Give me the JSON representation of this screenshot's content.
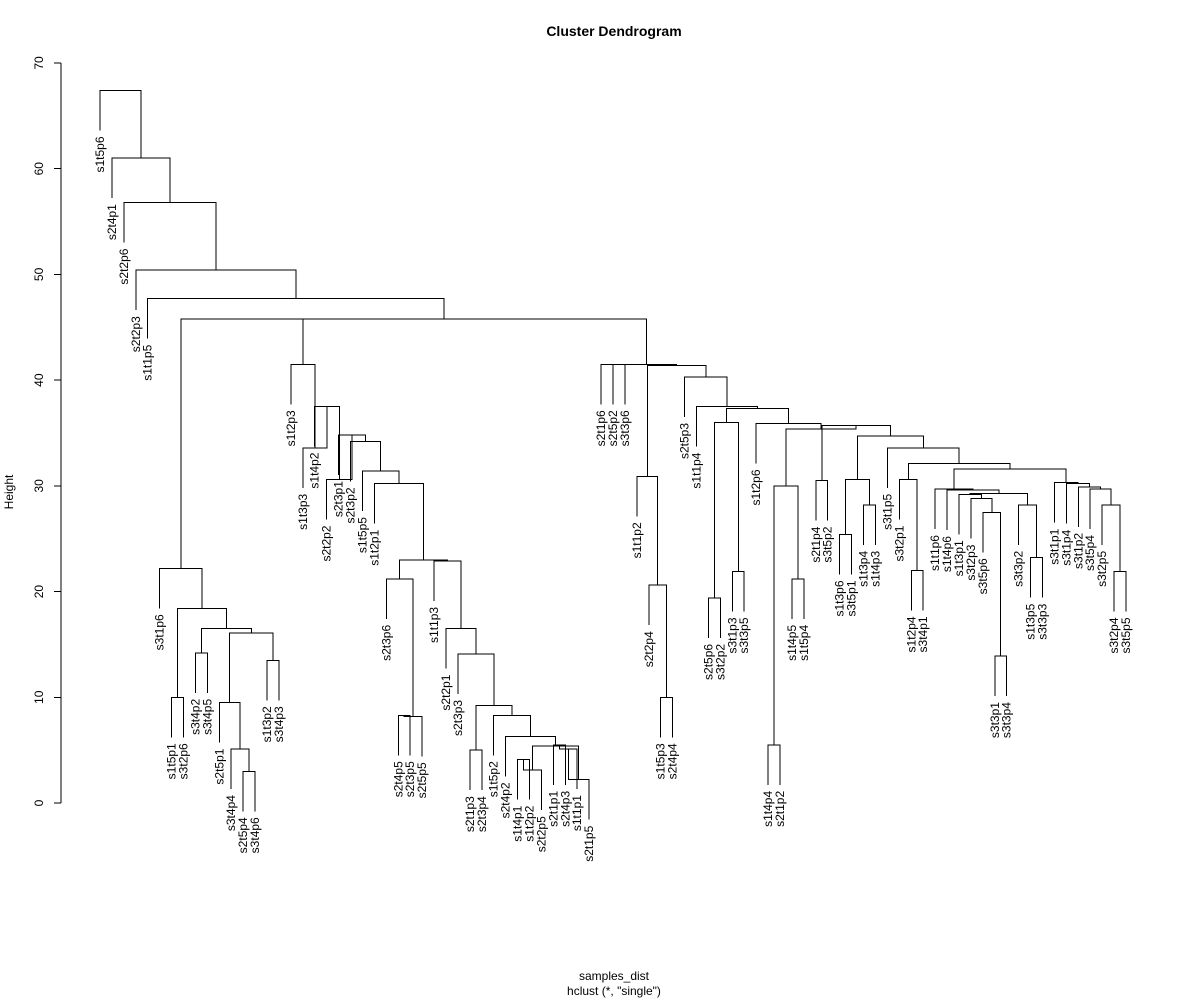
{
  "chart_data": {
    "type": "dendrogram",
    "title": "Cluster Dendrogram",
    "xlabel": "samples_dist",
    "sub": "hclust (*, \"single\")",
    "ylabel": "Height",
    "ylim": [
      0,
      70
    ],
    "yticks": [
      0,
      10,
      20,
      30,
      40,
      50,
      60,
      70
    ],
    "grid": false,
    "legend": "none",
    "leaves": [
      "s1t5p6",
      "s2t4p1",
      "s2t2p6",
      "s2t2p3",
      "s1t1p5",
      "s3t1p6",
      "s1t5p1",
      "s3t2p6",
      "s3t4p2",
      "s3t4p5",
      "s2t5p1",
      "s3t4p4",
      "s2t5p4",
      "s3t4p6",
      "s1t3p2",
      "s3t4p3",
      "s1t2p3",
      "s1t3p3",
      "s1t4p2",
      "s2t2p2",
      "s2t3p1",
      "s2t3p2",
      "s1t5p5",
      "s1t2p1",
      "s2t3p6",
      "s2t4p5",
      "s2t3p5",
      "s2t5p5",
      "s1t1p3",
      "s2t2p1",
      "s2t3p3",
      "s2t1p3",
      "s2t3p4",
      "s1t5p2",
      "s2t4p2",
      "s1t4p1",
      "s1t2p2",
      "s2t2p5",
      "s2t1p1",
      "s2t4p3",
      "s1t1p1",
      "s2t1p5",
      "s2t1p6",
      "s2t5p2",
      "s3t3p6",
      "s1t1p2",
      "s2t2p4",
      "s1t5p3",
      "s2t4p4",
      "s2t5p3",
      "s1t1p4",
      "s2t5p6",
      "s3t2p2",
      "s3t1p3",
      "s3t3p5",
      "s1t2p6",
      "s1t4p4",
      "s2t1p2",
      "s1t4p5",
      "s1t5p4",
      "s2t1p4",
      "s3t5p2",
      "s1t3p6",
      "s3t5p1",
      "s1t3p4",
      "s1t4p3",
      "s3t1p5",
      "s3t2p1",
      "s1t2p4",
      "s3t4p1",
      "s1t1p6",
      "s1t4p6",
      "s1t3p1",
      "s3t2p3",
      "s3t5p6",
      "s3t3p1",
      "s3t3p4",
      "s3t3p2",
      "s1t3p5",
      "s3t3p3",
      "s3t1p1",
      "s3t1p4",
      "s3t1p2",
      "s3t5p4",
      "s3t2p5",
      "s3t2p4",
      "s3t5p5"
    ],
    "merges": [
      [
        "s2t4p5",
        "s2t3p5",
        8.3
      ],
      [
        "A1",
        "s2t5p5",
        8.2
      ],
      [
        "s2t1p1",
        "s2t4p3",
        5.5
      ],
      [
        "A3",
        "s1t1p1",
        5.1
      ],
      [
        "A4",
        "s2t1p5",
        2.2
      ],
      [
        "s1t4p1",
        "s1t2p2",
        4.1
      ],
      [
        "A6",
        "s2t2p5",
        3.1
      ],
      [
        "A7",
        "A5",
        5.4
      ],
      [
        "s2t4p2",
        "A8",
        6.3
      ],
      [
        "s1t5p2",
        "A9",
        8.3
      ],
      [
        "s2t1p3",
        "s2t3p4",
        5.0
      ],
      [
        "A11",
        "A10",
        9.2
      ],
      [
        "s2t3p3",
        "A12",
        14.1
      ],
      [
        "s2t2p1",
        "A13",
        16.5
      ],
      [
        "s1t1p3",
        "A14",
        22.9
      ],
      [
        "s2t3p6",
        "A2",
        21.2
      ],
      [
        "A16",
        "A15",
        23.0
      ],
      [
        "s1t2p1",
        "A17",
        30.2
      ],
      [
        "s1t5p5",
        "A18",
        31.4
      ],
      [
        "s2t3p2",
        "A19",
        34.2
      ],
      [
        "s2t3p1",
        "A20",
        34.8
      ],
      [
        "s2t2p2",
        "A21",
        30.6
      ],
      [
        "s1t4p2",
        "A22",
        37.5
      ],
      [
        "s1t3p3",
        "A23",
        33.6
      ],
      [
        "s1t2p3",
        "A24",
        41.5
      ],
      [
        "s1t3p2",
        "s3t4p3",
        13.5
      ],
      [
        "s2t5p4",
        "s3t4p6",
        3.0
      ],
      [
        "s3t4p4",
        "A27",
        5.1
      ],
      [
        "s2t5p1",
        "A28",
        9.5
      ],
      [
        "A29",
        "A26",
        16.1
      ],
      [
        "s3t4p2",
        "s3t4p5",
        14.2
      ],
      [
        "A31",
        "A30",
        16.5
      ],
      [
        "s1t5p1",
        "s3t2p6",
        10.0
      ],
      [
        "A33",
        "A32",
        18.4
      ],
      [
        "s3t1p6",
        "A34",
        22.2
      ],
      [
        "A35",
        "A25",
        45.8
      ],
      [
        "s2t1p6",
        "s2t5p2",
        41.5
      ],
      [
        "s3t3p6",
        "A37",
        41.5
      ],
      [
        "s1t5p3",
        "s2t4p4",
        10.0
      ],
      [
        "s2t2p4",
        "A39",
        20.6
      ],
      [
        "s1t1p2",
        "A40",
        30.9
      ],
      [
        "s3t2p4",
        "s3t5p5",
        21.9
      ],
      [
        "s3t2p5",
        "A42",
        28.2
      ],
      [
        "s3t5p4",
        "A43",
        29.7
      ],
      [
        "s3t1p2",
        "A44",
        29.9
      ],
      [
        "s3t1p4",
        "A45",
        30.2
      ],
      [
        "s3t1p1",
        "A46",
        30.3
      ],
      [
        "s1t3p5",
        "s3t3p3",
        23.2
      ],
      [
        "s3t3p2",
        "A48",
        28.2
      ],
      [
        "s3t3p1",
        "s3t3p4",
        13.9
      ],
      [
        "s3t5p6",
        "A50",
        27.5
      ],
      [
        "s3t2p3",
        "A51",
        28.8
      ],
      [
        "s1t3p1",
        "A52",
        29.2
      ],
      [
        "A53",
        "A49",
        29.3
      ],
      [
        "s1t4p6",
        "A54",
        29.6
      ],
      [
        "s1t1p6",
        "A55",
        29.7
      ],
      [
        "A56",
        "A47",
        31.6
      ],
      [
        "s3t4p1",
        "s1t2p4",
        22.0
      ],
      [
        "s3t2p1",
        "A58",
        30.6
      ],
      [
        "A59",
        "A57",
        32.1
      ],
      [
        "s3t1p5",
        "A60",
        33.6
      ],
      [
        "s1t4p3",
        "s1t3p4",
        28.2
      ],
      [
        "s3t5p1",
        "s1t3p6",
        25.4
      ],
      [
        "A63",
        "A62",
        30.6
      ],
      [
        "A64",
        "A61",
        34.7
      ],
      [
        "s3t5p2",
        "s2t1p4",
        30.5
      ],
      [
        "A66",
        "A65",
        35.7
      ],
      [
        "s1t5p4",
        "s1t4p5",
        21.2
      ],
      [
        "s2t1p2",
        "s1t4p4",
        5.5
      ],
      [
        "A69",
        "A68",
        30.0
      ],
      [
        "A70",
        "A67",
        35.4
      ],
      [
        "s1t2p6",
        "A71",
        35.9
      ],
      [
        "s3t1p3",
        "s3t3p5",
        21.9
      ],
      [
        "s3t2p2",
        "s2t5p6",
        19.4
      ],
      [
        "A74",
        "A73",
        36.0
      ],
      [
        "A75",
        "A72",
        37.3
      ],
      [
        "s1t1p4",
        "A76",
        37.5
      ],
      [
        "s2t5p3",
        "A77",
        40.3
      ],
      [
        "A78",
        "A41",
        41.4
      ],
      [
        "A79",
        "A38",
        41.5
      ],
      [
        "A80",
        "A36",
        45.8
      ],
      [
        "s1t1p5",
        "A81",
        47.7
      ],
      [
        "s2t2p3",
        "A82",
        50.4
      ],
      [
        "s2t2p6",
        "A83",
        56.8
      ],
      [
        "s2t4p1",
        "A84",
        61.0
      ],
      [
        "s1t5p6",
        "A85",
        67.4
      ]
    ]
  }
}
